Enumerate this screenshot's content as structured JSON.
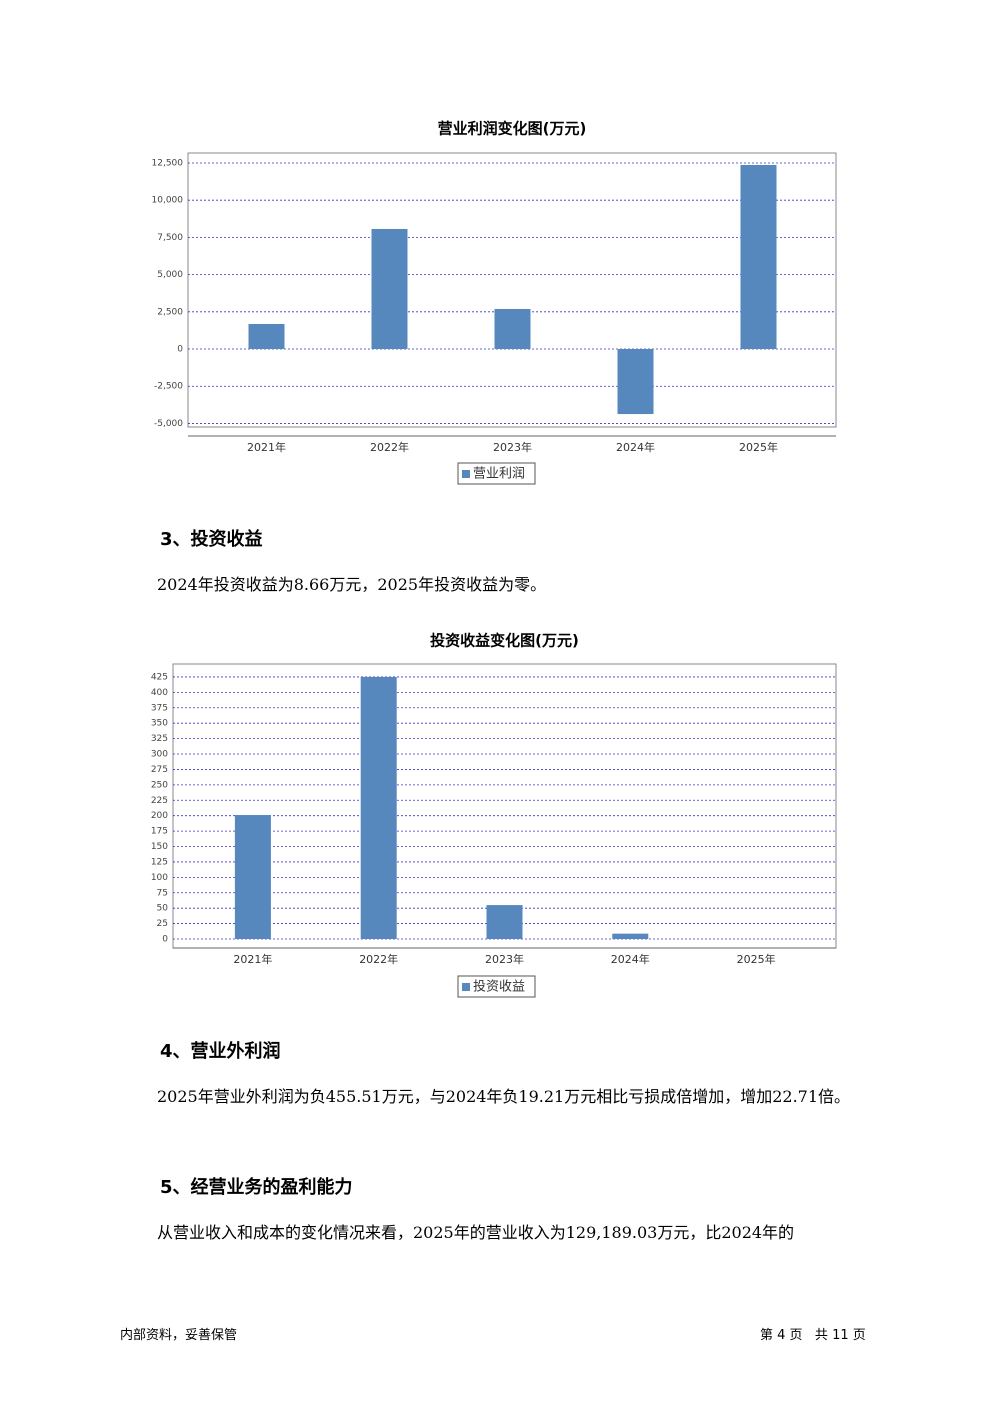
{
  "chart_data": [
    {
      "type": "bar",
      "title": "营业利润变化图(万元)",
      "categories": [
        "2021年",
        "2022年",
        "2023年",
        "2024年",
        "2025年"
      ],
      "series": [
        {
          "name": "营业利润",
          "color": "#5687bd",
          "values": [
            1680,
            8065,
            2690,
            -4370,
            12365
          ]
        }
      ],
      "ylim": [
        -5240,
        13170
      ],
      "yticks": [
        {
          "value": -5000,
          "label": "-5,000"
        },
        {
          "value": -2500,
          "label": "-2,500"
        },
        0,
        {
          "value": 2500,
          "label": "2,500"
        },
        {
          "value": 5000,
          "label": "5,000"
        },
        {
          "value": 7500,
          "label": "7,500"
        },
        {
          "value": 10000,
          "label": "10,000"
        },
        {
          "value": 12500,
          "label": "12,500"
        }
      ],
      "grid": true
    },
    {
      "type": "bar",
      "title": "投资收益变化图(万元)",
      "categories": [
        "2021年",
        "2022年",
        "2023年",
        "2024年",
        "2025年"
      ],
      "series": [
        {
          "name": "投资收益",
          "color": "#5687bd",
          "values": [
            201,
            425,
            55,
            8.66,
            0
          ]
        }
      ],
      "ylim": [
        -14.6,
        446
      ],
      "yticks": [
        0,
        25,
        50,
        75,
        100,
        125,
        150,
        175,
        200,
        225,
        250,
        275,
        300,
        325,
        350,
        375,
        400,
        425
      ],
      "grid": true
    }
  ],
  "sections": [
    {
      "heading": "3、投资收益",
      "text": "2024年投资收益为8.66万元，2025年投资收益为零。"
    },
    {
      "heading": "4、营业外利润",
      "text": "2025年营业外利润为负455.51万元，与2024年负19.21万元相比亏损成倍增加，增加22.71倍。"
    },
    {
      "heading": "5、经营业务的盈利能力",
      "text": "从营业收入和成本的变化情况来看，2025年的营业收入为129,189.03万元，比2024年的"
    }
  ],
  "footer": {
    "left": "内部资料，妥善保管",
    "right": "第 4 页   共 11 页"
  }
}
